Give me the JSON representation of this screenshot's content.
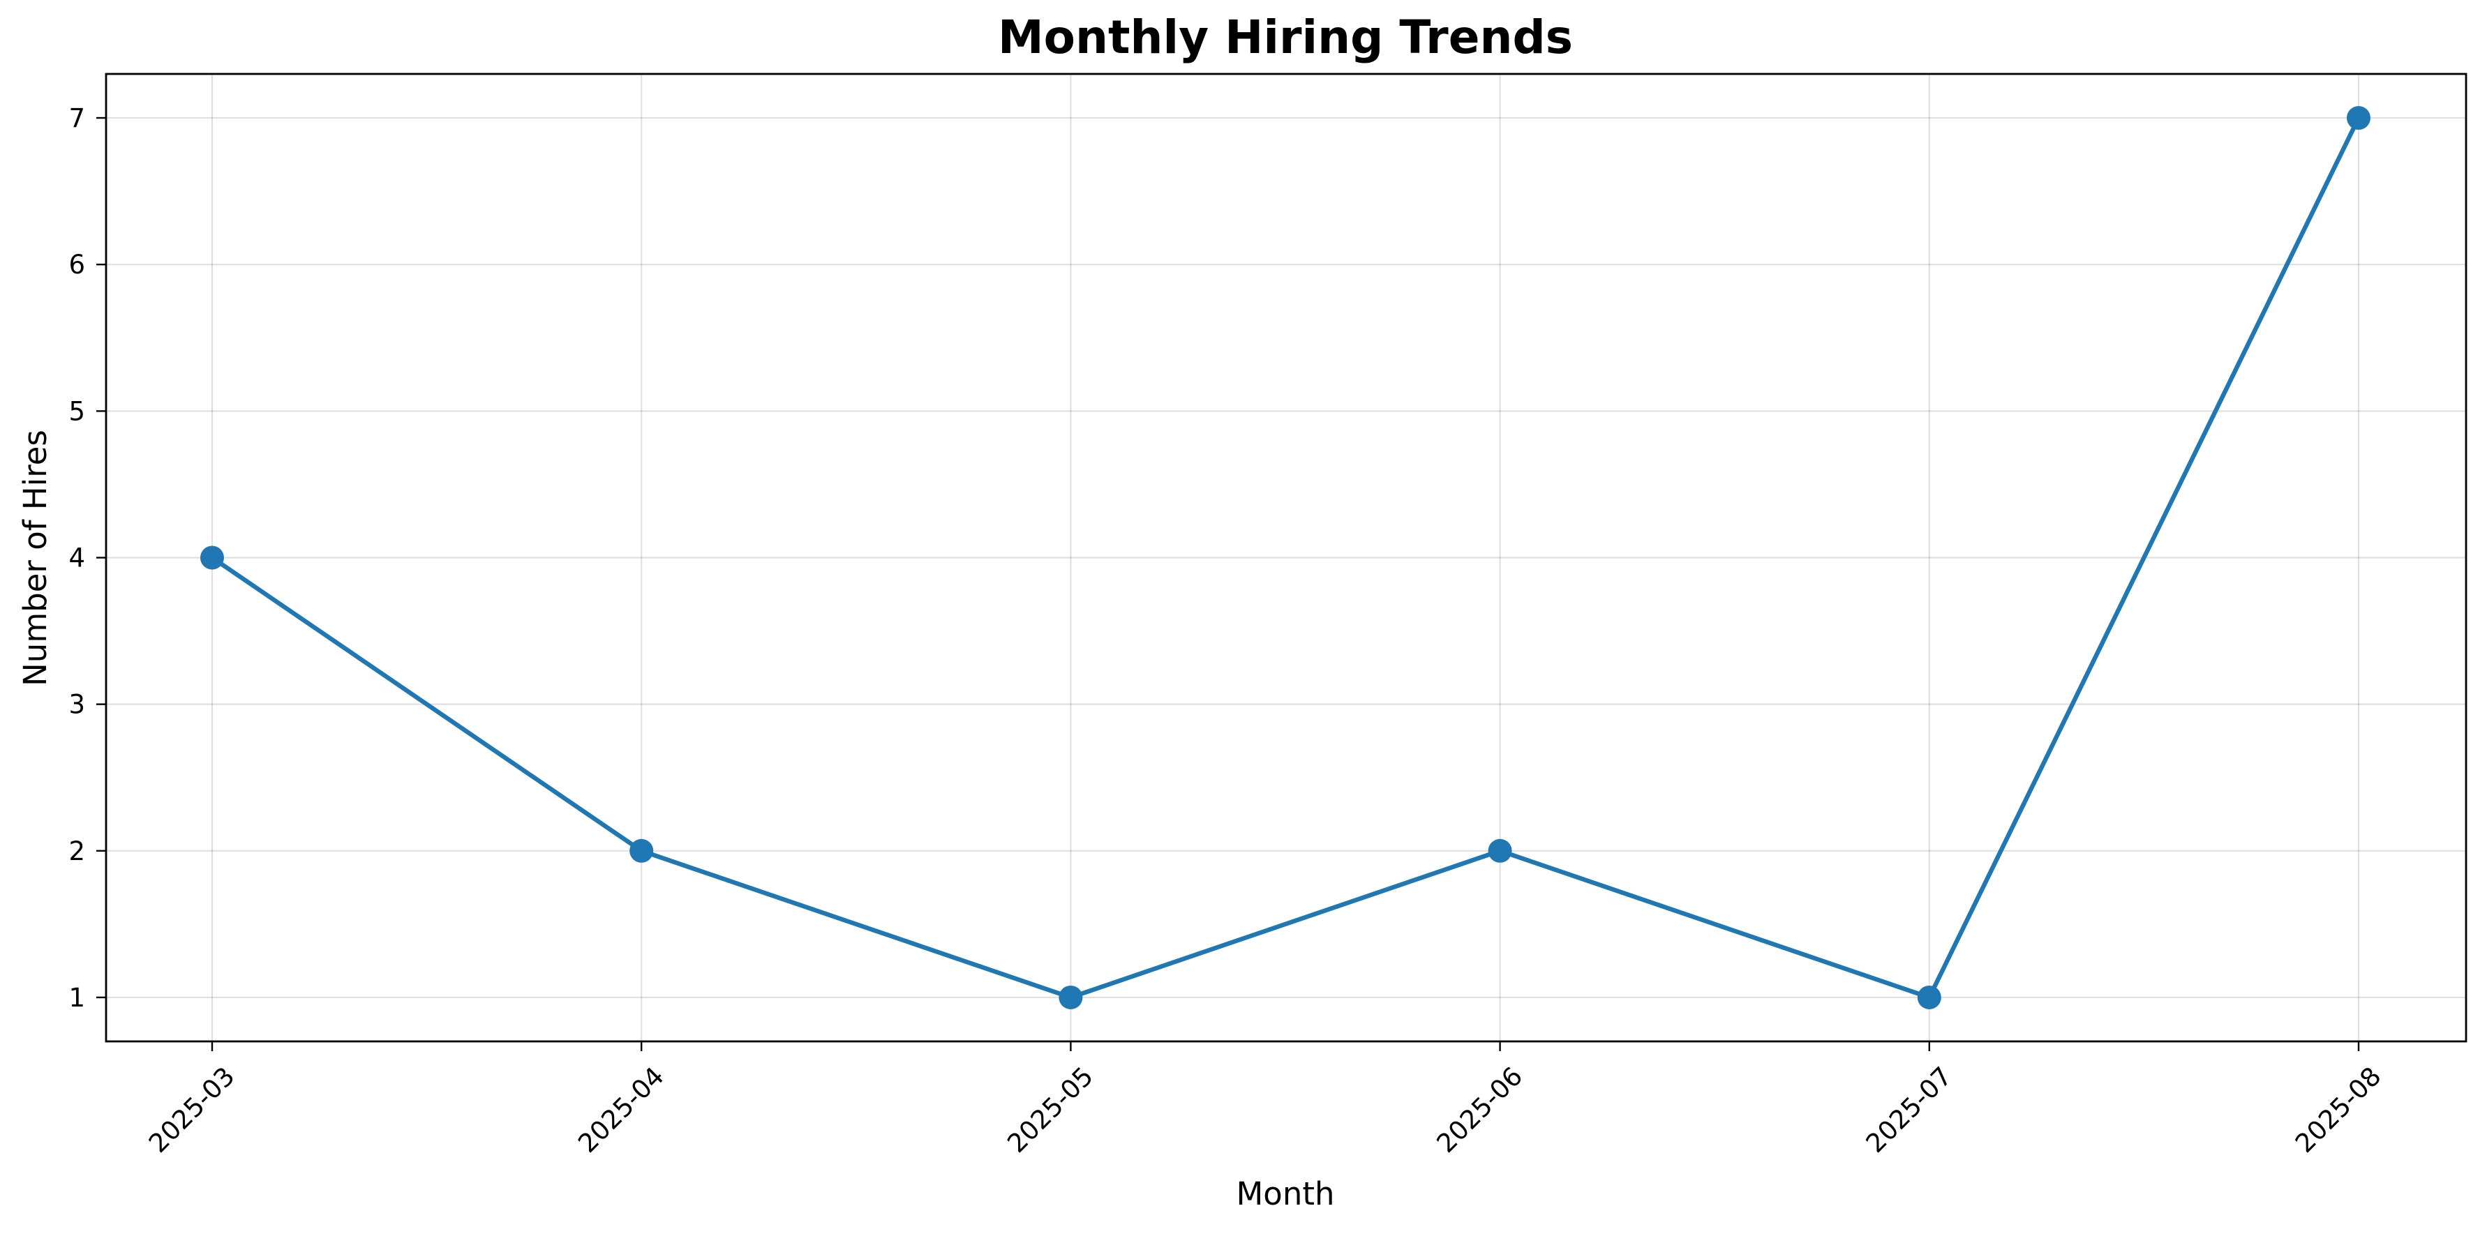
{
  "chart_data": {
    "type": "line",
    "title": "Monthly Hiring Trends",
    "xlabel": "Month",
    "ylabel": "Number of Hires",
    "categories": [
      "2025-03",
      "2025-04",
      "2025-05",
      "2025-06",
      "2025-07",
      "2025-08"
    ],
    "series": [
      {
        "values": [
          4,
          2,
          1,
          2,
          1,
          7
        ],
        "color": "#1f77b4",
        "marker": "circle"
      }
    ],
    "yticks": [
      1,
      2,
      3,
      4,
      5,
      6,
      7
    ],
    "ylim": [
      0.7,
      7.3
    ],
    "xtick_rotation_deg": 45,
    "grid": true,
    "legend": "none"
  }
}
